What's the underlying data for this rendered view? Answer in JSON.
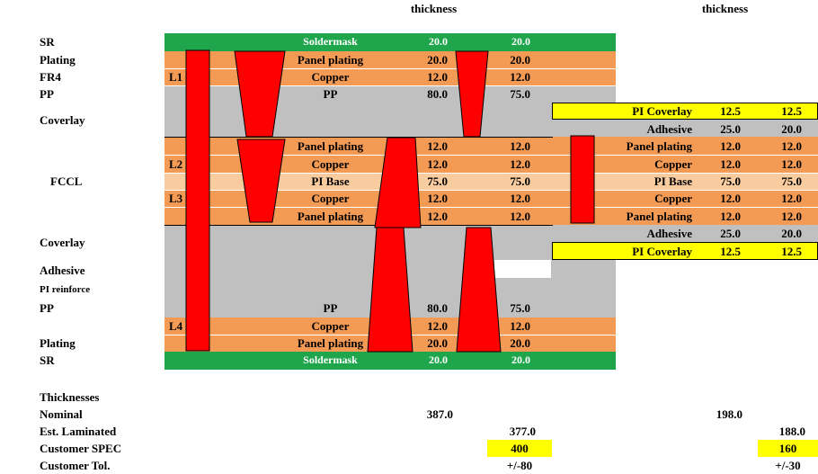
{
  "headers": {
    "thickness_left": "thickness",
    "thickness_right": "thickness"
  },
  "left_labels": {
    "sr_top": "SR",
    "plating_top": "Plating",
    "fr4": "FR4",
    "pp_top": "PP",
    "coverlay_top": "Coverlay",
    "fccl": "FCCL",
    "coverlay_bottom": "Coverlay",
    "adhesive": "Adhesive",
    "pi_reinforce": "PI reinforce",
    "pp_bottom": "PP",
    "plating_bottom": "Plating",
    "sr_bottom": "SR"
  },
  "layer_ids": {
    "l1": "L1",
    "l2": "L2",
    "l3": "L3",
    "l4": "L4"
  },
  "rigid_stack": [
    {
      "name": "Soldermask",
      "v1": "20.0",
      "v2": "20.0",
      "color": "#1fa64c"
    },
    {
      "name": "Panel plating",
      "v1": "20.0",
      "v2": "20.0",
      "color": "#f39a55"
    },
    {
      "name": "Copper",
      "v1": "12.0",
      "v2": "12.0",
      "color": "#f39a55"
    },
    {
      "name": "PP",
      "v1": "80.0",
      "v2": "75.0",
      "color": "#c0c0c0"
    },
    {
      "name": "Panel plating",
      "v1": "12.0",
      "v2": "12.0",
      "color": "#f39a55"
    },
    {
      "name": "Copper",
      "v1": "12.0",
      "v2": "12.0",
      "color": "#f39a55"
    },
    {
      "name": "PI Base",
      "v1": "75.0",
      "v2": "75.0",
      "color": "#f9cc9f"
    },
    {
      "name": "Copper",
      "v1": "12.0",
      "v2": "12.0",
      "color": "#f39a55"
    },
    {
      "name": "Panel plating",
      "v1": "12.0",
      "v2": "12.0",
      "color": "#f39a55"
    },
    {
      "name": "PP",
      "v1": "80.0",
      "v2": "75.0",
      "color": "#c0c0c0"
    },
    {
      "name": "Copper",
      "v1": "12.0",
      "v2": "12.0",
      "color": "#f39a55"
    },
    {
      "name": "Panel plating",
      "v1": "20.0",
      "v2": "20.0",
      "color": "#f39a55"
    },
    {
      "name": "Soldermask",
      "v1": "20.0",
      "v2": "20.0",
      "color": "#1fa64c"
    }
  ],
  "flex_stack": [
    {
      "name": "PI Coverlay",
      "v1": "12.5",
      "v2": "12.5",
      "color": "#ffff00"
    },
    {
      "name": "Adhesive",
      "v1": "25.0",
      "v2": "20.0",
      "color": "#c0c0c0"
    },
    {
      "name": "Panel plating",
      "v1": "12.0",
      "v2": "12.0",
      "color": "#f39a55"
    },
    {
      "name": "Copper",
      "v1": "12.0",
      "v2": "12.0",
      "color": "#f39a55"
    },
    {
      "name": "PI Base",
      "v1": "75.0",
      "v2": "75.0",
      "color": "#f9cc9f"
    },
    {
      "name": "Copper",
      "v1": "12.0",
      "v2": "12.0",
      "color": "#f39a55"
    },
    {
      "name": "Panel plating",
      "v1": "12.0",
      "v2": "12.0",
      "color": "#f39a55"
    },
    {
      "name": "Adhesive",
      "v1": "25.0",
      "v2": "20.0",
      "color": "#c0c0c0"
    },
    {
      "name": "PI Coverlay",
      "v1": "12.5",
      "v2": "12.5",
      "color": "#ffff00"
    }
  ],
  "summary": {
    "title": "Thicknesses",
    "nominal_label": "Nominal",
    "nominal_rigid": "387.0",
    "nominal_flex": "198.0",
    "est_label": "Est. Laminated",
    "est_rigid": "377.0",
    "est_flex": "188.0",
    "spec_label": "Customer SPEC",
    "spec_rigid": "400",
    "spec_flex": "160",
    "tol_label": "Customer Tol.",
    "tol_rigid": "+/-80",
    "tol_flex": "+/-30"
  },
  "colors": {
    "soldermask": "#1fa64c",
    "copper": "#f39a55",
    "pi_base": "#f9cc9f",
    "dielectric": "#c0c0c0",
    "coverlay": "#ffff00",
    "via": "#ff0000"
  }
}
